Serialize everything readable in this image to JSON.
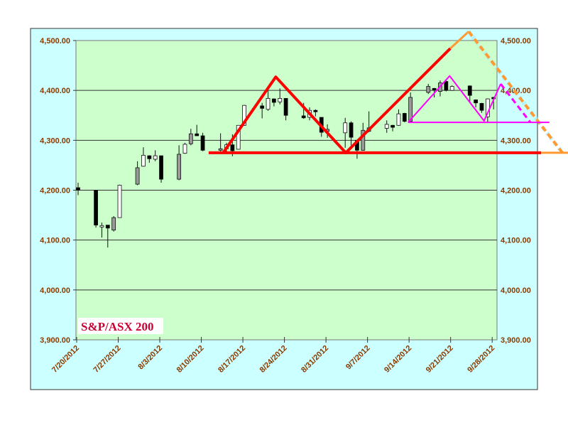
{
  "chart_data": {
    "type": "candlestick",
    "title": "S&P/ASX 200",
    "xlabel": "",
    "ylabel": "",
    "ylim": [
      3900,
      4500
    ],
    "y_ticks": [
      "3,900.00",
      "4,000.00",
      "4,100.00",
      "4,200.00",
      "4,300.00",
      "4,400.00",
      "4,500.00"
    ],
    "y_tick_values": [
      3900,
      4000,
      4100,
      4200,
      4300,
      4400,
      4500
    ],
    "x_axis_origin": "7/20/2012",
    "x_ticks": [
      {
        "label": "7/20/2012",
        "day": 0
      },
      {
        "label": "7/27/2012",
        "day": 7
      },
      {
        "label": "8/3/2012",
        "day": 14
      },
      {
        "label": "8/10/2012",
        "day": 21
      },
      {
        "label": "8/17/2012",
        "day": 28
      },
      {
        "label": "8/24/2012",
        "day": 35
      },
      {
        "label": "8/31/2012",
        "day": 42
      },
      {
        "label": "9/7/2012",
        "day": 49
      },
      {
        "label": "9/14/2012",
        "day": 56
      },
      {
        "label": "9/21/2012",
        "day": 63
      },
      {
        "label": "9/28/2012",
        "day": 70
      }
    ],
    "grid": true,
    "candles": [
      {
        "date": "7/20/2012",
        "day": 0,
        "o": 4205,
        "h": 4215,
        "l": 4190,
        "c": 4200,
        "style": "black"
      },
      {
        "date": "7/23/2012",
        "day": 3,
        "o": 4200,
        "h": 4200,
        "l": 4125,
        "c": 4130,
        "style": "black"
      },
      {
        "date": "7/24/2012",
        "day": 4,
        "o": 4127,
        "h": 4135,
        "l": 4105,
        "c": 4129,
        "style": "white"
      },
      {
        "date": "7/25/2012",
        "day": 5,
        "o": 4130,
        "h": 4130,
        "l": 4085,
        "c": 4124,
        "style": "black"
      },
      {
        "date": "7/26/2012",
        "day": 6,
        "o": 4120,
        "h": 4148,
        "l": 4117,
        "c": 4145,
        "style": "gray"
      },
      {
        "date": "7/27/2012",
        "day": 7,
        "o": 4145,
        "h": 4211,
        "l": 4145,
        "c": 4210,
        "style": "white"
      },
      {
        "date": "7/30/2012",
        "day": 10,
        "o": 4212,
        "h": 4258,
        "l": 4210,
        "c": 4245,
        "style": "gray"
      },
      {
        "date": "7/31/2012",
        "day": 11,
        "o": 4248,
        "h": 4286,
        "l": 4247,
        "c": 4270,
        "style": "white"
      },
      {
        "date": "8/1/2012",
        "day": 12,
        "o": 4269,
        "h": 4270,
        "l": 4255,
        "c": 4263,
        "style": "black"
      },
      {
        "date": "8/2/2012",
        "day": 13,
        "o": 4262,
        "h": 4280,
        "l": 4258,
        "c": 4269,
        "style": "white"
      },
      {
        "date": "8/3/2012",
        "day": 14,
        "o": 4269,
        "h": 4269,
        "l": 4215,
        "c": 4222,
        "style": "black"
      },
      {
        "date": "8/6/2012",
        "day": 17,
        "o": 4222,
        "h": 4290,
        "l": 4220,
        "c": 4272,
        "style": "gray"
      },
      {
        "date": "8/7/2012",
        "day": 18,
        "o": 4274,
        "h": 4295,
        "l": 4273,
        "c": 4292,
        "style": "white"
      },
      {
        "date": "8/8/2012",
        "day": 19,
        "o": 4293,
        "h": 4323,
        "l": 4290,
        "c": 4313,
        "style": "gray"
      },
      {
        "date": "8/9/2012",
        "day": 20,
        "o": 4313,
        "h": 4331,
        "l": 4309,
        "c": 4309,
        "style": "black"
      },
      {
        "date": "8/10/2012",
        "day": 21,
        "o": 4309,
        "h": 4315,
        "l": 4278,
        "c": 4280,
        "style": "black"
      },
      {
        "date": "8/13/2012",
        "day": 24,
        "o": 4280,
        "h": 4314,
        "l": 4278,
        "c": 4283,
        "style": "gray"
      },
      {
        "date": "8/14/2012",
        "day": 25,
        "o": 4283,
        "h": 4295,
        "l": 4277,
        "c": 4291,
        "style": "white"
      },
      {
        "date": "8/15/2012",
        "day": 26,
        "o": 4291,
        "h": 4312,
        "l": 4268,
        "c": 4279,
        "style": "black"
      },
      {
        "date": "8/16/2012",
        "day": 27,
        "o": 4282,
        "h": 4330,
        "l": 4282,
        "c": 4330,
        "style": "white"
      },
      {
        "date": "8/17/2012",
        "day": 28,
        "o": 4330,
        "h": 4371,
        "l": 4329,
        "c": 4370,
        "style": "white"
      },
      {
        "date": "8/20/2012",
        "day": 31,
        "o": 4369,
        "h": 4375,
        "l": 4344,
        "c": 4364,
        "style": "black"
      },
      {
        "date": "8/21/2012",
        "day": 32,
        "o": 4362,
        "h": 4404,
        "l": 4359,
        "c": 4384,
        "style": "white"
      },
      {
        "date": "8/22/2012",
        "day": 33,
        "o": 4383,
        "h": 4384,
        "l": 4368,
        "c": 4376,
        "style": "black"
      },
      {
        "date": "8/23/2012",
        "day": 34,
        "o": 4377,
        "h": 4404,
        "l": 4372,
        "c": 4384,
        "style": "white"
      },
      {
        "date": "8/24/2012",
        "day": 35,
        "o": 4384,
        "h": 4384,
        "l": 4340,
        "c": 4350,
        "style": "black"
      },
      {
        "date": "8/27/2012",
        "day": 38,
        "o": 4349,
        "h": 4375,
        "l": 4343,
        "c": 4345,
        "style": "black"
      },
      {
        "date": "8/28/2012",
        "day": 39,
        "o": 4346,
        "h": 4366,
        "l": 4340,
        "c": 4360,
        "style": "white"
      },
      {
        "date": "8/29/2012",
        "day": 40,
        "o": 4360,
        "h": 4362,
        "l": 4348,
        "c": 4359,
        "style": "black"
      },
      {
        "date": "8/30/2012",
        "day": 41,
        "o": 4346,
        "h": 4346,
        "l": 4307,
        "c": 4316,
        "style": "black"
      },
      {
        "date": "8/31/2012",
        "day": 42,
        "o": 4318,
        "h": 4332,
        "l": 4305,
        "c": 4322,
        "style": "gray"
      },
      {
        "date": "9/3/2012",
        "day": 45,
        "o": 4315,
        "h": 4345,
        "l": 4285,
        "c": 4335,
        "style": "white"
      },
      {
        "date": "9/4/2012",
        "day": 46,
        "o": 4335,
        "h": 4338,
        "l": 4290,
        "c": 4306,
        "style": "black"
      },
      {
        "date": "9/5/2012",
        "day": 47,
        "o": 4300,
        "h": 4301,
        "l": 4263,
        "c": 4280,
        "style": "black"
      },
      {
        "date": "9/6/2012",
        "day": 48,
        "o": 4280,
        "h": 4335,
        "l": 4279,
        "c": 4320,
        "style": "gray"
      },
      {
        "date": "9/7/2012",
        "day": 49,
        "o": 4318,
        "h": 4358,
        "l": 4316,
        "c": 4325,
        "style": "gray"
      },
      {
        "date": "9/10/2012",
        "day": 52,
        "o": 4324,
        "h": 4340,
        "l": 4315,
        "c": 4332,
        "style": "white"
      },
      {
        "date": "9/11/2012",
        "day": 53,
        "o": 4330,
        "h": 4331,
        "l": 4318,
        "c": 4326,
        "style": "black"
      },
      {
        "date": "9/12/2012",
        "day": 54,
        "o": 4330,
        "h": 4362,
        "l": 4329,
        "c": 4353,
        "style": "white"
      },
      {
        "date": "9/13/2012",
        "day": 55,
        "o": 4354,
        "h": 4355,
        "l": 4336,
        "c": 4338,
        "style": "black"
      },
      {
        "date": "9/14/2012",
        "day": 56,
        "o": 4338,
        "h": 4396,
        "l": 4336,
        "c": 4386,
        "style": "gray"
      },
      {
        "date": "9/17/2012",
        "day": 59,
        "o": 4396,
        "h": 4413,
        "l": 4393,
        "c": 4408,
        "style": "gray"
      },
      {
        "date": "9/18/2012",
        "day": 60,
        "o": 4404,
        "h": 4405,
        "l": 4386,
        "c": 4401,
        "style": "black"
      },
      {
        "date": "9/19/2012",
        "day": 61,
        "o": 4398,
        "h": 4420,
        "l": 4388,
        "c": 4415,
        "style": "gray"
      },
      {
        "date": "9/20/2012",
        "day": 62,
        "o": 4418,
        "h": 4420,
        "l": 4398,
        "c": 4400,
        "style": "black"
      },
      {
        "date": "9/21/2012",
        "day": 63,
        "o": 4400,
        "h": 4410,
        "l": 4399,
        "c": 4408,
        "style": "white"
      },
      {
        "date": "9/24/2012",
        "day": 66,
        "o": 4409,
        "h": 4410,
        "l": 4377,
        "c": 4390,
        "style": "black"
      },
      {
        "date": "9/25/2012",
        "day": 67,
        "o": 4381,
        "h": 4382,
        "l": 4366,
        "c": 4375,
        "style": "black"
      },
      {
        "date": "9/26/2012",
        "day": 68,
        "o": 4374,
        "h": 4375,
        "l": 4355,
        "c": 4360,
        "style": "black"
      },
      {
        "date": "9/27/2012",
        "day": 69,
        "o": 4347,
        "h": 4384,
        "l": 4337,
        "c": 4383,
        "style": "white"
      },
      {
        "date": "9/28/2012",
        "day": 70,
        "o": 4386,
        "h": 4387,
        "l": 4362,
        "c": 4384,
        "style": "black"
      }
    ],
    "overlays": [
      {
        "name": "support-line",
        "color": "#ff0000",
        "width": 4,
        "dash": false,
        "points": [
          [
            22,
            4275
          ],
          [
            78,
            4275
          ]
        ]
      },
      {
        "name": "red-zigzag",
        "color": "#ff0000",
        "width": 4,
        "dash": false,
        "points": [
          [
            24.5,
            4276
          ],
          [
            33.3,
            4427
          ],
          [
            45.1,
            4275
          ],
          [
            62.7,
            4484
          ]
        ]
      },
      {
        "name": "orange-peak",
        "color": "#ff9933",
        "width": 3,
        "dash": false,
        "points": [
          [
            62.7,
            4484
          ],
          [
            65.8,
            4518
          ]
        ]
      },
      {
        "name": "orange-projection",
        "color": "#ff9933",
        "width": 4,
        "dash": true,
        "points": [
          [
            65.8,
            4518
          ],
          [
            81.6,
            4275
          ]
        ]
      },
      {
        "name": "orange-base",
        "color": "#ff9933",
        "width": 3,
        "dash": false,
        "points": [
          [
            78,
            4275
          ],
          [
            82.8,
            4275
          ]
        ]
      },
      {
        "name": "magenta-neckline",
        "color": "#ff00ff",
        "width": 2,
        "dash": false,
        "points": [
          [
            55.6,
            4336
          ],
          [
            79.4,
            4336
          ]
        ]
      },
      {
        "name": "magenta-zigzag",
        "color": "#ff00ff",
        "width": 2,
        "dash": false,
        "points": [
          [
            55.6,
            4336
          ],
          [
            62.6,
            4429
          ],
          [
            68.4,
            4339
          ],
          [
            71.2,
            4413
          ]
        ]
      },
      {
        "name": "magenta-projection",
        "color": "#ff00ff",
        "width": 3,
        "dash": true,
        "points": [
          [
            71.2,
            4413
          ],
          [
            76.2,
            4336
          ]
        ]
      }
    ]
  },
  "colors": {
    "outer_bg": "#ccffff",
    "plot_bg": "#ccffcc",
    "axis_label": "#8b3a00",
    "title": "#cc0033"
  }
}
